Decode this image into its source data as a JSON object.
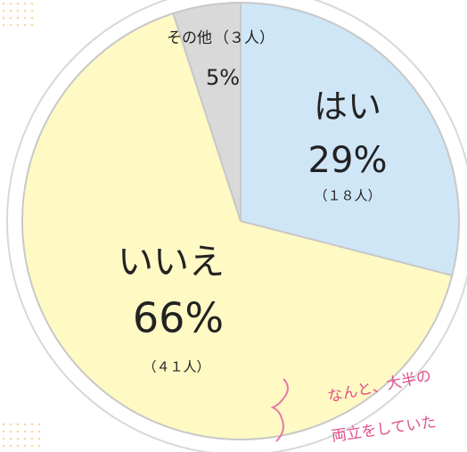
{
  "chart_data": {
    "type": "pie",
    "categories": [
      "はい",
      "いいえ",
      "その他"
    ],
    "values": [
      29,
      66,
      5
    ],
    "value_labels": [
      "29%",
      "66%",
      "5%"
    ],
    "count_labels": [
      "（１８人）",
      "（４１人）",
      "（３人）"
    ],
    "colors": [
      "#cfe6f7",
      "#fff9c4",
      "#d9d9d9"
    ],
    "annotation": [
      "なんと、大半の",
      "両立をしていた"
    ]
  }
}
